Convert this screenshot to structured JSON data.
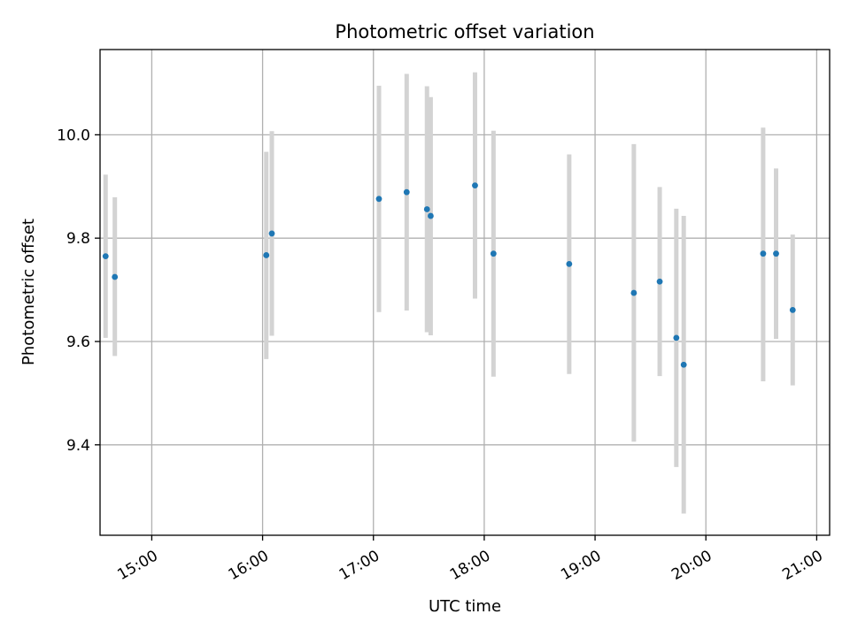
{
  "chart_data": {
    "type": "scatter",
    "title": "Photometric offset variation",
    "xlabel": "UTC time",
    "ylabel": "Photometric offset",
    "x_ticks": [
      "15:00",
      "16:00",
      "17:00",
      "18:00",
      "19:00",
      "20:00",
      "21:00"
    ],
    "y_ticks": [
      "9.4",
      "9.6",
      "9.8",
      "10.0"
    ],
    "xlim": [
      "14:32",
      "21:07"
    ],
    "ylim": [
      9.225,
      10.165
    ],
    "grid": true,
    "legend": "none",
    "marker_color": "#1f77b4",
    "errorbar_color": "#d3d3d3",
    "points": [
      {
        "x": "14:35",
        "y": 9.765,
        "low": 9.607,
        "high": 9.923
      },
      {
        "x": "14:40",
        "y": 9.725,
        "low": 9.572,
        "high": 9.879
      },
      {
        "x": "16:02",
        "y": 9.767,
        "low": 9.566,
        "high": 9.967
      },
      {
        "x": "16:05",
        "y": 9.809,
        "low": 9.611,
        "high": 10.007
      },
      {
        "x": "17:03",
        "y": 9.876,
        "low": 9.657,
        "high": 10.095
      },
      {
        "x": "17:18",
        "y": 9.889,
        "low": 9.66,
        "high": 10.118
      },
      {
        "x": "17:29",
        "y": 9.856,
        "low": 9.618,
        "high": 10.094
      },
      {
        "x": "17:31",
        "y": 9.843,
        "low": 9.612,
        "high": 10.073
      },
      {
        "x": "17:55",
        "y": 9.902,
        "low": 9.683,
        "high": 10.121
      },
      {
        "x": "18:05",
        "y": 9.77,
        "low": 9.532,
        "high": 10.008
      },
      {
        "x": "18:46",
        "y": 9.75,
        "low": 9.537,
        "high": 9.962
      },
      {
        "x": "19:21",
        "y": 9.694,
        "low": 9.406,
        "high": 9.982
      },
      {
        "x": "19:35",
        "y": 9.716,
        "low": 9.533,
        "high": 9.899
      },
      {
        "x": "19:44",
        "y": 9.607,
        "low": 9.357,
        "high": 9.857
      },
      {
        "x": "19:48",
        "y": 9.555,
        "low": 9.267,
        "high": 9.843
      },
      {
        "x": "20:31",
        "y": 9.77,
        "low": 9.523,
        "high": 10.014
      },
      {
        "x": "20:38",
        "y": 9.77,
        "low": 9.605,
        "high": 9.935
      },
      {
        "x": "20:47",
        "y": 9.661,
        "low": 9.515,
        "high": 9.807
      }
    ]
  }
}
